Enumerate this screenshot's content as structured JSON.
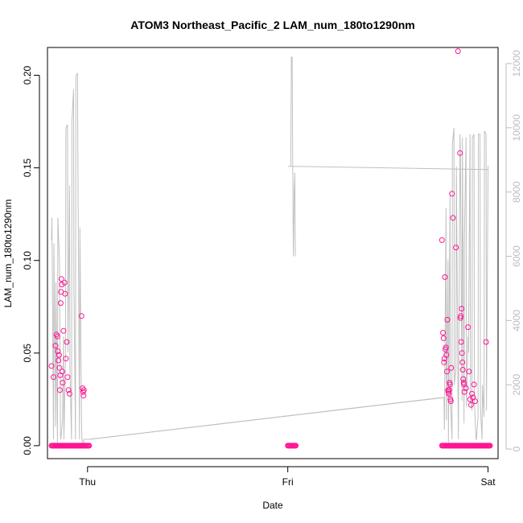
{
  "chart_data": {
    "type": "scatter",
    "title": "ATOM3 Northeast_Pacific_2 LAM_num_180to1290nm",
    "xlabel": "Date",
    "ylabel": "LAM_num_180to1290nm",
    "x_ticks": [
      "Thu",
      "Fri",
      "Sat"
    ],
    "xlim_days": [
      -1.2,
      1.05
    ],
    "ylim": [
      -0.007,
      0.215
    ],
    "y_ticks": [
      0.0,
      0.05,
      0.1,
      0.15,
      0.2
    ],
    "y_tick_labels": [
      "0.00",
      "0.05",
      "0.10",
      "0.15",
      "0.20"
    ],
    "y2lim": [
      -300,
      12500
    ],
    "y2_ticks": [
      0,
      2000,
      4000,
      6000,
      8000,
      10000,
      12000
    ],
    "y2_tick_labels": [
      "0",
      "2000",
      "4000",
      "6000",
      "8000",
      "10000",
      "12000"
    ],
    "grid": false,
    "colors": {
      "points": "#ff1493",
      "line": "#c0c0c0",
      "right_axis": "#bdbdbd"
    },
    "series": [
      {
        "kind": "points",
        "axis": "left",
        "x": [
          -1.18,
          -1.17,
          -1.16,
          -1.155,
          -1.15,
          -1.148,
          -1.145,
          -1.142,
          -1.14,
          -1.138,
          -1.136,
          -1.134,
          -1.132,
          -1.13,
          -1.128,
          -1.126,
          -1.124,
          -1.12,
          -1.115,
          -1.112,
          -1.108,
          -1.104,
          -1.1,
          -1.095,
          -1.09,
          -1.03,
          -1.025,
          -1.022,
          -1.02,
          -1.018,
          0.77,
          0.775,
          0.778,
          0.78,
          0.782,
          0.785,
          0.787,
          0.79,
          0.792,
          0.795,
          0.797,
          0.8,
          0.802,
          0.804,
          0.806,
          0.808,
          0.81,
          0.812,
          0.814,
          0.816,
          0.82,
          0.825,
          0.84,
          0.85,
          0.86,
          0.862,
          0.864,
          0.866,
          0.868,
          0.87,
          0.872,
          0.874,
          0.876,
          0.878,
          0.88,
          0.882,
          0.89,
          0.9,
          0.905,
          0.91,
          0.915,
          0.92,
          0.925,
          0.93,
          0.935,
          0.99
        ],
        "y": [
          0.043,
          0.037,
          0.054,
          0.06,
          0.059,
          0.051,
          0.046,
          0.049,
          0.042,
          0.03,
          0.038,
          0.077,
          0.083,
          0.09,
          0.087,
          0.04,
          0.034,
          0.062,
          0.088,
          0.082,
          0.047,
          0.056,
          0.037,
          0.03,
          0.028,
          0.07,
          0.031,
          0.029,
          0.027,
          0.03,
          0.111,
          0.061,
          0.058,
          0.045,
          0.047,
          0.091,
          0.052,
          0.053,
          0.049,
          0.04,
          0.068,
          0.03,
          0.029,
          0.028,
          0.03,
          0.034,
          0.033,
          0.025,
          0.024,
          0.042,
          0.136,
          0.123,
          0.107,
          0.213,
          0.158,
          0.069,
          0.07,
          0.056,
          0.074,
          0.05,
          0.045,
          0.041,
          0.036,
          0.034,
          0.033,
          0.029,
          0.031,
          0.064,
          0.04,
          0.025,
          0.022,
          0.028,
          0.026,
          0.033,
          0.024,
          0.056
        ]
      },
      {
        "kind": "line",
        "axis": "right",
        "x": [
          -1.18,
          -1.178,
          -1.17,
          -1.168,
          -1.16,
          -1.158,
          -1.15,
          -1.148,
          -1.14,
          -1.135,
          -1.133,
          -1.125,
          -1.12,
          -1.118,
          -1.11,
          -1.108,
          -1.1,
          -1.098,
          -1.09,
          -1.088,
          -1.08,
          -1.078,
          -1.07,
          -1.068,
          -1.06,
          -1.058,
          -1.05,
          -1.048,
          -1.04,
          -1.038,
          -1.03,
          -1.028,
          -1.02,
          -1.018,
          -0.99,
          0.78,
          0.782,
          0.79,
          0.792,
          0.8,
          0.802,
          0.81,
          0.812,
          0.82,
          0.822,
          0.83,
          0.832,
          0.84,
          0.842,
          0.85,
          0.852,
          0.86,
          0.862,
          0.87,
          0.872,
          0.88,
          0.882,
          0.89,
          0.892,
          0.9,
          0.902,
          0.91,
          0.912,
          0.92,
          0.922,
          0.93,
          0.932,
          0.94,
          0.942,
          0.95,
          0.952,
          0.96,
          0.962,
          0.97,
          0.972,
          0.98,
          0.982,
          0.99,
          0.992,
          1.0,
          1.002
        ],
        "y": [
          6500,
          7200,
          300,
          6400,
          700,
          5200,
          200,
          7200,
          5900,
          400,
          300,
          900,
          3500,
          300,
          2800,
          10000,
          10100,
          3000,
          8200,
          2500,
          300,
          10200,
          11200,
          5000,
          300,
          11600,
          11700,
          9000,
          300,
          6900,
          1000,
          300,
          100,
          300,
          300,
          1600,
          600,
          7500,
          900,
          5900,
          200,
          8000,
          1500,
          300,
          9500,
          10000,
          2000,
          2500,
          8800,
          1700,
          300,
          9800,
          9200,
          1500,
          9700,
          800,
          6500,
          9700,
          1300,
          3500,
          3000,
          9800,
          1500,
          1200,
          9700,
          9800,
          1500,
          300,
          300,
          1000,
          9800,
          9800,
          1300,
          300,
          2000,
          1000,
          9900,
          9800,
          1200,
          8800,
          8800
        ]
      },
      {
        "kind": "line",
        "axis": "right",
        "x": [
          -0.99,
          0.77
        ],
        "y": [
          300,
          1600
        ]
      },
      {
        "kind": "line",
        "axis": "right",
        "x": [
          0.015,
          0.018,
          0.022,
          0.025,
          0.028,
          0.03,
          0.032,
          0.035,
          0.038
        ],
        "y": [
          8800,
          12200,
          12200,
          8500,
          6000,
          6800,
          8000,
          8600,
          6000
        ]
      },
      {
        "kind": "line",
        "axis": "right",
        "x": [
          0.0,
          0.015,
          1.0
        ],
        "y": [
          8800,
          8800,
          8700
        ]
      }
    ],
    "zero_cluster_x": [
      [
        -1.18,
        -0.99
      ],
      [
        0.0,
        0.04
      ],
      [
        0.77,
        1.01
      ]
    ]
  }
}
